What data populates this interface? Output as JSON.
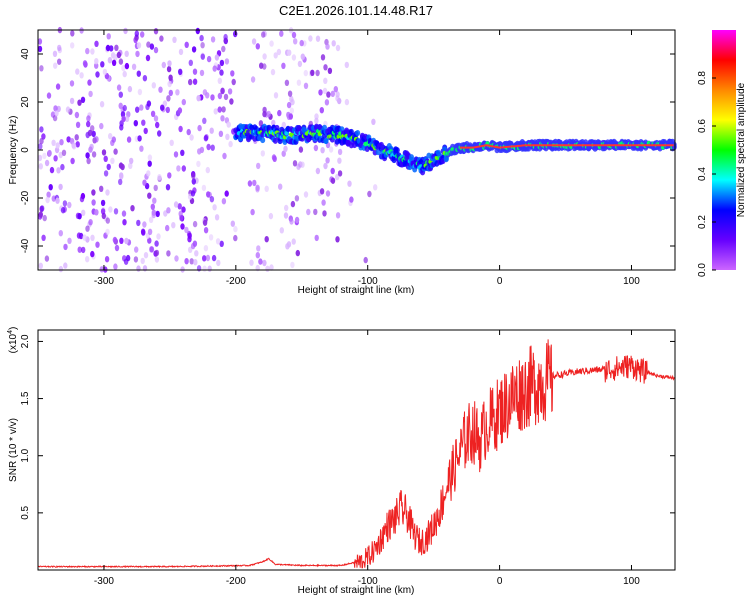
{
  "title": "C2E1.2026.101.14.48.R17",
  "chart_data": [
    {
      "type": "heatmap",
      "xlabel": "Height of straight line (km)",
      "ylabel": "Frequency (Hz)",
      "xlim": [
        -350,
        133
      ],
      "ylim": [
        -50,
        50
      ],
      "xticks": [
        -300,
        -200,
        -100,
        0,
        100
      ],
      "yticks": [
        -40,
        -20,
        0,
        20,
        40
      ],
      "colorbar": {
        "label": "Normalized spectral amplitude",
        "range": [
          0,
          1
        ],
        "ticks": [
          0.0,
          0.2,
          0.4,
          0.6,
          0.8
        ],
        "colormap": [
          "#ffffff",
          "#cc66ff",
          "#6600ff",
          "#0000ff",
          "#00ffff",
          "#00ff00",
          "#ffff00",
          "#ff8800",
          "#ff0000",
          "#ff00ff"
        ]
      },
      "ridge": {
        "x": [
          -200,
          -180,
          -160,
          -140,
          -120,
          -100,
          -90,
          -80,
          -70,
          -60,
          -50,
          -40,
          -30,
          -20,
          -10,
          0,
          20,
          40,
          60,
          80,
          100,
          120,
          133
        ],
        "y": [
          7,
          7,
          6,
          7,
          6,
          3,
          0,
          -2,
          -4,
          -7,
          -4,
          -1,
          1,
          1,
          2,
          1,
          2,
          2,
          2,
          2,
          2,
          2,
          2
        ]
      },
      "grid": false
    },
    {
      "type": "line",
      "xlabel": "Height of straight line (km)",
      "ylabel": "SNR (10 * v/v)",
      "y_multiplier": "(x10",
      "y_multiplier_exp": "4",
      "xlim": [
        -350,
        133
      ],
      "ylim": [
        0,
        2.1
      ],
      "xticks": [
        -300,
        -200,
        -100,
        0,
        100
      ],
      "yticks": [
        0.5,
        1.0,
        1.5,
        2.0
      ],
      "series": [
        {
          "color": "#ee2222",
          "x": [
            -350,
            -250,
            -190,
            -180,
            -175,
            -170,
            -150,
            -120,
            -105,
            -100,
            -95,
            -90,
            -85,
            -80,
            -75,
            -70,
            -65,
            -60,
            -55,
            -50,
            -45,
            -40,
            -35,
            -30,
            -25,
            -20,
            -15,
            -10,
            -5,
            0,
            5,
            10,
            20,
            30,
            40,
            50,
            60,
            70,
            80,
            90,
            100,
            110,
            120,
            133
          ],
          "y": [
            0.03,
            0.03,
            0.04,
            0.07,
            0.1,
            0.05,
            0.04,
            0.04,
            0.08,
            0.12,
            0.18,
            0.28,
            0.4,
            0.45,
            0.55,
            0.5,
            0.33,
            0.25,
            0.3,
            0.4,
            0.55,
            0.75,
            0.9,
            1.05,
            1.2,
            1.25,
            1.15,
            1.3,
            1.35,
            1.42,
            1.48,
            1.55,
            1.62,
            1.68,
            1.7,
            1.72,
            1.74,
            1.75,
            1.76,
            1.78,
            1.8,
            1.74,
            1.7,
            1.68
          ]
        }
      ],
      "grid": false
    }
  ]
}
